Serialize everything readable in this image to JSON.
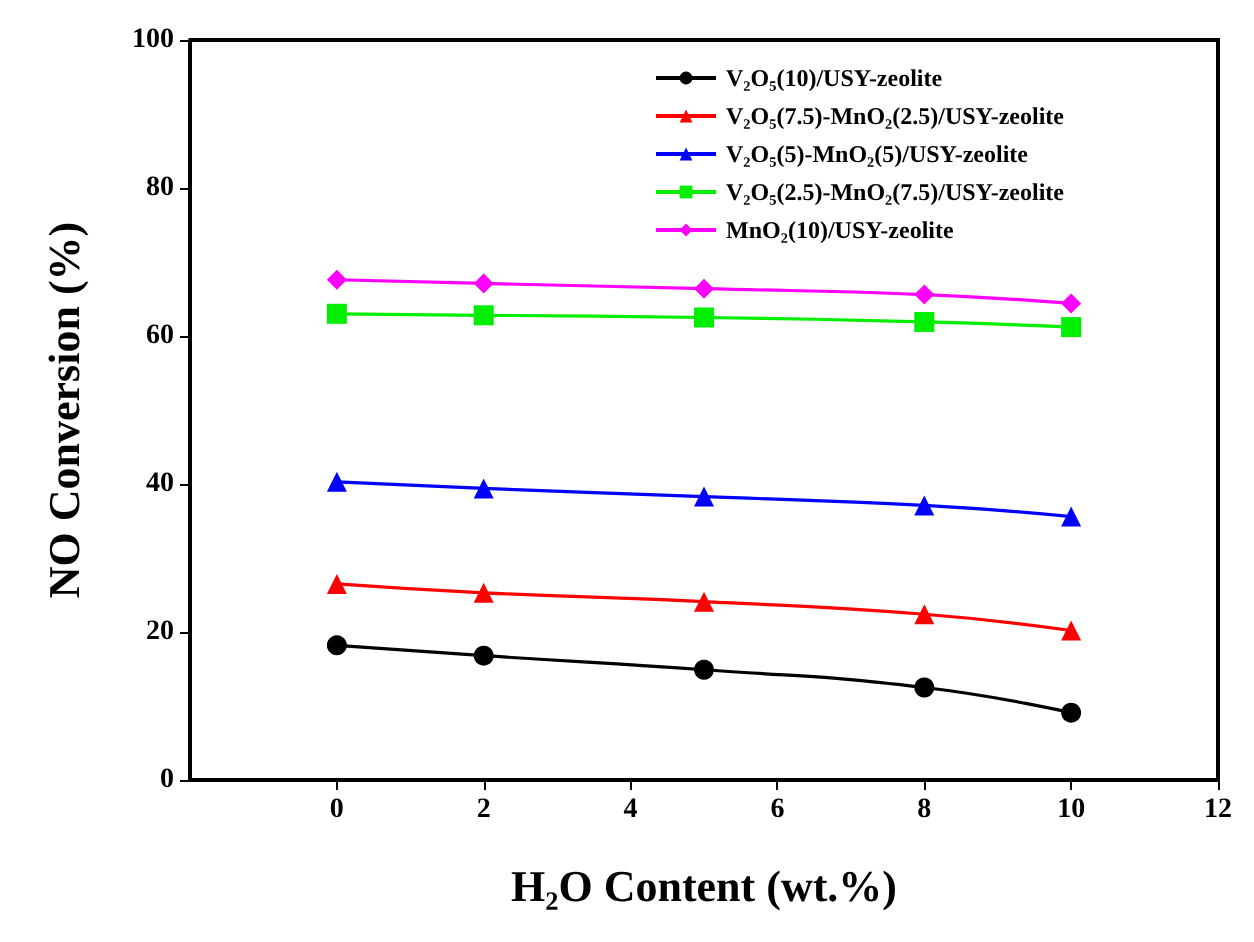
{
  "chart_data": {
    "type": "line",
    "xlabel": "H₂O Content (wt.%)",
    "ylabel": "NO Conversion (%)",
    "x": [
      0,
      2,
      5,
      8,
      10
    ],
    "xlim": [
      -2,
      12
    ],
    "xticks": [
      0,
      2,
      4,
      6,
      8,
      10,
      12
    ],
    "ylim": [
      0,
      100
    ],
    "yticks": [
      0,
      20,
      40,
      60,
      80,
      100
    ],
    "grid": false,
    "legend": "top right",
    "series": [
      {
        "name": "V₂O₅(10)/USY-zeolite",
        "color": "#000000",
        "marker": "circle",
        "values": [
          18.2,
          16.8,
          14.9,
          12.5,
          9.1
        ]
      },
      {
        "name": "V₂O₅(7.5)-MnO₂(2.5)/USY-zeolite",
        "color": "#ff0000",
        "marker": "triangle",
        "values": [
          26.5,
          25.3,
          24.1,
          22.4,
          20.2
        ]
      },
      {
        "name": "V₂O₅(5)-MnO₂(5)/USY-zeolite",
        "color": "#0000ff",
        "marker": "triangle",
        "values": [
          40.3,
          39.4,
          38.3,
          37.1,
          35.6
        ]
      },
      {
        "name": "V₂O₅(2.5)-MnO₂(7.5)/USY-zeolite",
        "color": "#00ee00",
        "marker": "square",
        "values": [
          63.0,
          62.8,
          62.5,
          61.9,
          61.2
        ]
      },
      {
        "name": "MnO₂(10)/USY-zeolite",
        "color": "#ff00ff",
        "marker": "diamond",
        "values": [
          67.6,
          67.1,
          66.4,
          65.6,
          64.4
        ]
      }
    ]
  }
}
